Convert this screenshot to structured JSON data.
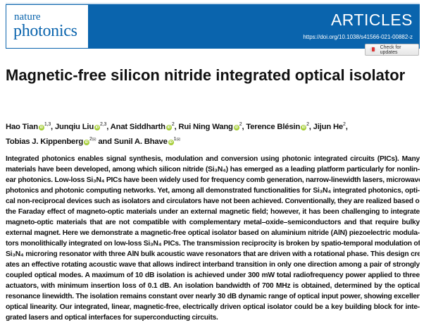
{
  "header": {
    "journal_line1": "nature",
    "journal_line2": "photonics",
    "section": "ARTICLES",
    "doi": "https://doi.org/10.1038/s41566-021-00882-z",
    "check_updates": "Check for updates",
    "brand_color": "#0a64ad"
  },
  "title": "Magnetic-free silicon nitride integrated optical isolator",
  "authors": [
    {
      "name": "Hao Tian",
      "orcid": true,
      "aff": "1,3",
      "sep": ", "
    },
    {
      "name": "Junqiu Liu",
      "orcid": true,
      "aff": "2,3",
      "sep": ", "
    },
    {
      "name": "Anat Siddharth",
      "orcid": true,
      "aff": "2",
      "sep": ", "
    },
    {
      "name": "Rui Ning Wang",
      "orcid": true,
      "aff": "2",
      "sep": ", "
    },
    {
      "name": "Terence Blésin",
      "orcid": true,
      "aff": "2",
      "sep": ", "
    },
    {
      "name": "Jijun He",
      "orcid": false,
      "aff": "2",
      "sep": ","
    },
    {
      "name": "Tobias J. Kippenberg",
      "orcid": true,
      "aff": "2",
      "mail": true,
      "sep": " and "
    },
    {
      "name": "Sunil A. Bhave",
      "orcid": true,
      "aff": "1",
      "mail": true,
      "sep": ""
    }
  ],
  "abstract_lines": [
    "Integrated photonics enables signal synthesis, modulation and conversion using photonic integrated circuits (PICs). Many",
    "materials have been developed, among which silicon nitride (Si₃N₄) has emerged as a leading platform particularly for nonlin-",
    "ear photonics. Low-loss Si₃N₄ PICs have been widely used for frequency comb generation, narrow-linewidth lasers, microwave",
    "photonics and photonic computing networks. Yet, among all demonstrated functionalities for Si₃N₄ integrated photonics, opti-",
    "cal non-reciprocal devices such as isolators and circulators have not been achieved. Conventionally, they are realized based on",
    "the Faraday effect of magneto-optic materials under an external magnetic field; however, it has been challenging to integrate",
    "magneto-optic materials that are not compatible with complementary metal–oxide–semiconductors and that require bulky",
    "external magnet. Here we demonstrate a magnetic-free optical isolator based on aluminium nitride (AlN) piezoelectric modula-",
    "tors monolithically integrated on low-loss Si₃N₄ PICs. The transmission reciprocity is broken by spatio-temporal modulation of a",
    "Si₃N₄ microring resonator with three AlN bulk acoustic wave resonators that are driven with a rotational phase. This design cre-",
    "ates an effective rotating acoustic wave that allows indirect interband transition in only one direction among a pair of strongly",
    "coupled optical modes. A maximum of 10 dB isolation is achieved under 300 mW total radiofrequency power applied to three",
    "actuators, with minimum insertion loss of 0.1 dB. An isolation bandwidth of 700 MHz is obtained, determined by the optical",
    "resonance linewidth. The isolation remains constant over nearly 30 dB dynamic range of optical input power, showing excellent",
    "optical linearity. Our integrated, linear, magnetic-free, electrically driven optical isolator could be a key building block for inte-",
    "grated lasers and optical interfaces for superconducting circuits."
  ]
}
